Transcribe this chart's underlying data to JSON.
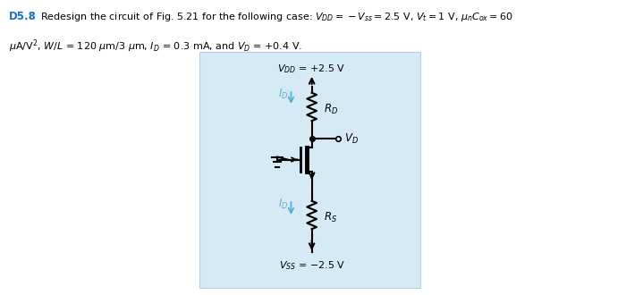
{
  "bg_color": "#d6eaf5",
  "box_border_color": "#b0cfe0",
  "line_color": "#000000",
  "blue_color": "#5bafd6",
  "vdd_text": "$V_{DD}$ = +2.5 V",
  "vss_text": "$V_{SS}$ = −2.5 V",
  "rd_text": "$R_D$",
  "rs_text": "$R_S$",
  "vd_text": "$V_D$",
  "id_text": "$I_D$",
  "header1": "Redesign the circuit of Fig. 5.21 for the following case: $V_{DD} = -V_{ss} = 2.5$ V, $V_t = 1$ V, $\\mu_n C_{ox} = 60$",
  "header2": "$\\mu$A/V$^2$, $W/L$ = 120 $\\mu$m/3 $\\mu$m, $I_D$ = 0.3 mA, and $V_D$ = +0.4 V.",
  "label_d58": "D5.8"
}
